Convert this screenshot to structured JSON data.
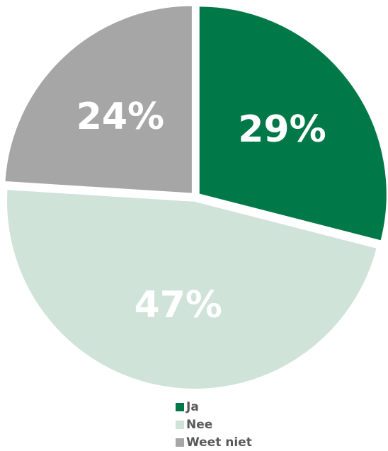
{
  "chart_data": {
    "type": "pie",
    "slices": [
      {
        "name": "Ja",
        "value": 29,
        "label": "29%",
        "color": "#007848"
      },
      {
        "name": "Nee",
        "value": 47,
        "label": "47%",
        "color": "#cfe3d8"
      },
      {
        "name": "Weet niet",
        "value": 24,
        "label": "24%",
        "color": "#a6a6a6"
      }
    ],
    "legend_position": "bottom",
    "exploded": true
  }
}
